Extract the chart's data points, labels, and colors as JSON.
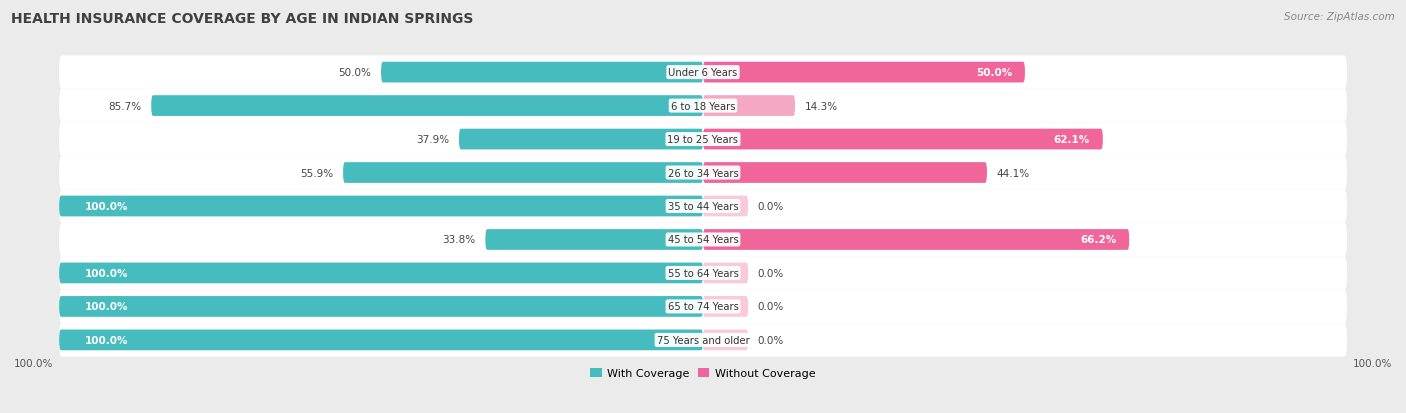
{
  "title": "HEALTH INSURANCE COVERAGE BY AGE IN INDIAN SPRINGS",
  "source": "Source: ZipAtlas.com",
  "categories": [
    "Under 6 Years",
    "6 to 18 Years",
    "19 to 25 Years",
    "26 to 34 Years",
    "35 to 44 Years",
    "45 to 54 Years",
    "55 to 64 Years",
    "65 to 74 Years",
    "75 Years and older"
  ],
  "with_coverage": [
    50.0,
    85.7,
    37.9,
    55.9,
    100.0,
    33.8,
    100.0,
    100.0,
    100.0
  ],
  "without_coverage": [
    50.0,
    14.3,
    62.1,
    44.1,
    0.0,
    66.2,
    0.0,
    0.0,
    0.0
  ],
  "color_with": "#46BCBE",
  "color_without_strong": "#F0659A",
  "color_without_weak": "#F5A8C4",
  "bg_color": "#EBEBEB",
  "bar_bg": "#FFFFFF",
  "row_bg_even": "#F5F5F5",
  "row_bg_odd": "#ECECEC",
  "title_color": "#404040",
  "source_color": "#888888",
  "label_color_inside": "#FFFFFF",
  "label_color_outside": "#555555",
  "legend_label_with": "With Coverage",
  "legend_label_without": "Without Coverage",
  "bar_height": 0.62,
  "figsize": [
    14.06,
    4.14
  ],
  "dpi": 100,
  "without_threshold": 20.0
}
